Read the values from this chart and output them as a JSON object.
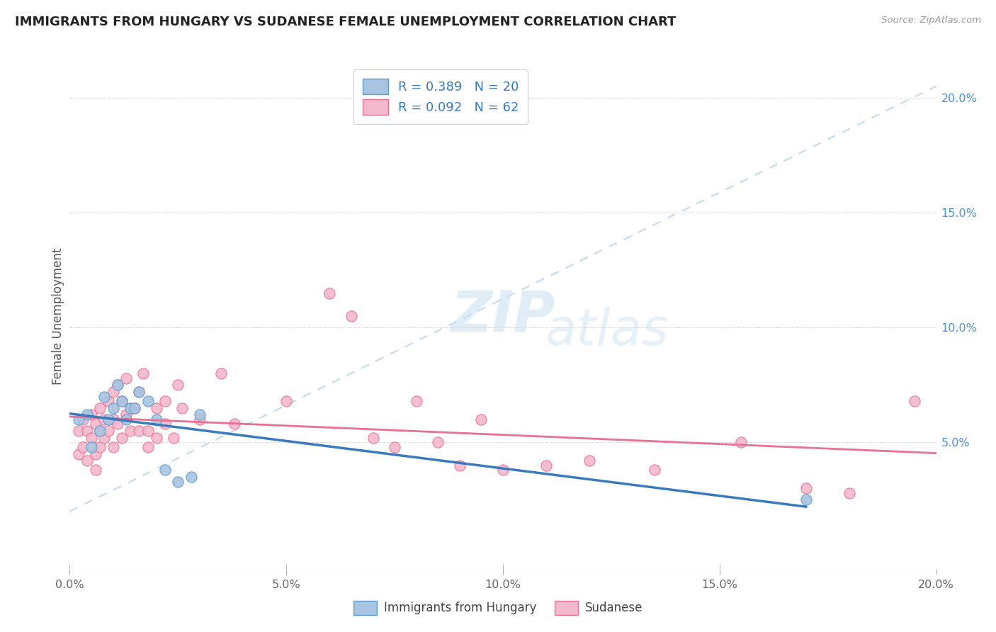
{
  "title": "IMMIGRANTS FROM HUNGARY VS SUDANESE FEMALE UNEMPLOYMENT CORRELATION CHART",
  "source": "Source: ZipAtlas.com",
  "ylabel": "Female Unemployment",
  "xlim": [
    0.0,
    0.2
  ],
  "ylim": [
    -0.005,
    0.215
  ],
  "x_tick_labels": [
    "0.0%",
    "",
    "5.0%",
    "",
    "10.0%",
    "",
    "15.0%",
    "",
    "20.0%"
  ],
  "x_tick_vals": [
    0.0,
    0.025,
    0.05,
    0.075,
    0.1,
    0.125,
    0.15,
    0.175,
    0.2
  ],
  "x_tick_display": [
    "0.0%",
    "5.0%",
    "10.0%",
    "15.0%",
    "20.0%"
  ],
  "x_tick_display_vals": [
    0.0,
    0.05,
    0.1,
    0.15,
    0.2
  ],
  "y_tick_labels": [
    "5.0%",
    "10.0%",
    "15.0%",
    "20.0%"
  ],
  "y_tick_vals": [
    0.05,
    0.1,
    0.15,
    0.2
  ],
  "legend_r1": "R = 0.389   N = 20",
  "legend_r2": "R = 0.092   N = 62",
  "color_hungary_fill": "#a8c4e0",
  "color_hungary_edge": "#5b9bd5",
  "color_sudanese_fill": "#f4b8cc",
  "color_sudanese_edge": "#e87090",
  "color_line_hungary": "#3a7abf",
  "color_line_sudanese": "#e87090",
  "color_trendline_dashed": "#b8d4ea",
  "hungary_x": [
    0.002,
    0.004,
    0.005,
    0.007,
    0.008,
    0.009,
    0.01,
    0.011,
    0.012,
    0.013,
    0.014,
    0.015,
    0.016,
    0.018,
    0.02,
    0.022,
    0.025,
    0.028,
    0.03,
    0.17
  ],
  "hungary_y": [
    0.06,
    0.062,
    0.048,
    0.055,
    0.07,
    0.06,
    0.065,
    0.075,
    0.068,
    0.06,
    0.065,
    0.065,
    0.072,
    0.068,
    0.06,
    0.038,
    0.033,
    0.035,
    0.062,
    0.025
  ],
  "sudanese_x": [
    0.002,
    0.002,
    0.003,
    0.003,
    0.004,
    0.004,
    0.005,
    0.005,
    0.006,
    0.006,
    0.006,
    0.007,
    0.007,
    0.007,
    0.008,
    0.008,
    0.009,
    0.009,
    0.01,
    0.01,
    0.01,
    0.011,
    0.011,
    0.012,
    0.012,
    0.013,
    0.013,
    0.014,
    0.014,
    0.015,
    0.016,
    0.016,
    0.017,
    0.018,
    0.018,
    0.02,
    0.02,
    0.022,
    0.022,
    0.024,
    0.025,
    0.026,
    0.03,
    0.035,
    0.038,
    0.05,
    0.06,
    0.065,
    0.07,
    0.075,
    0.08,
    0.085,
    0.09,
    0.095,
    0.1,
    0.11,
    0.12,
    0.135,
    0.155,
    0.17,
    0.18,
    0.195
  ],
  "sudanese_y": [
    0.055,
    0.045,
    0.06,
    0.048,
    0.055,
    0.042,
    0.062,
    0.052,
    0.058,
    0.045,
    0.038,
    0.065,
    0.055,
    0.048,
    0.06,
    0.052,
    0.068,
    0.055,
    0.072,
    0.06,
    0.048,
    0.075,
    0.058,
    0.068,
    0.052,
    0.078,
    0.062,
    0.065,
    0.055,
    0.065,
    0.072,
    0.055,
    0.08,
    0.055,
    0.048,
    0.065,
    0.052,
    0.068,
    0.058,
    0.052,
    0.075,
    0.065,
    0.06,
    0.08,
    0.058,
    0.068,
    0.115,
    0.105,
    0.052,
    0.048,
    0.068,
    0.05,
    0.04,
    0.06,
    0.038,
    0.04,
    0.042,
    0.038,
    0.05,
    0.03,
    0.028,
    0.068
  ]
}
